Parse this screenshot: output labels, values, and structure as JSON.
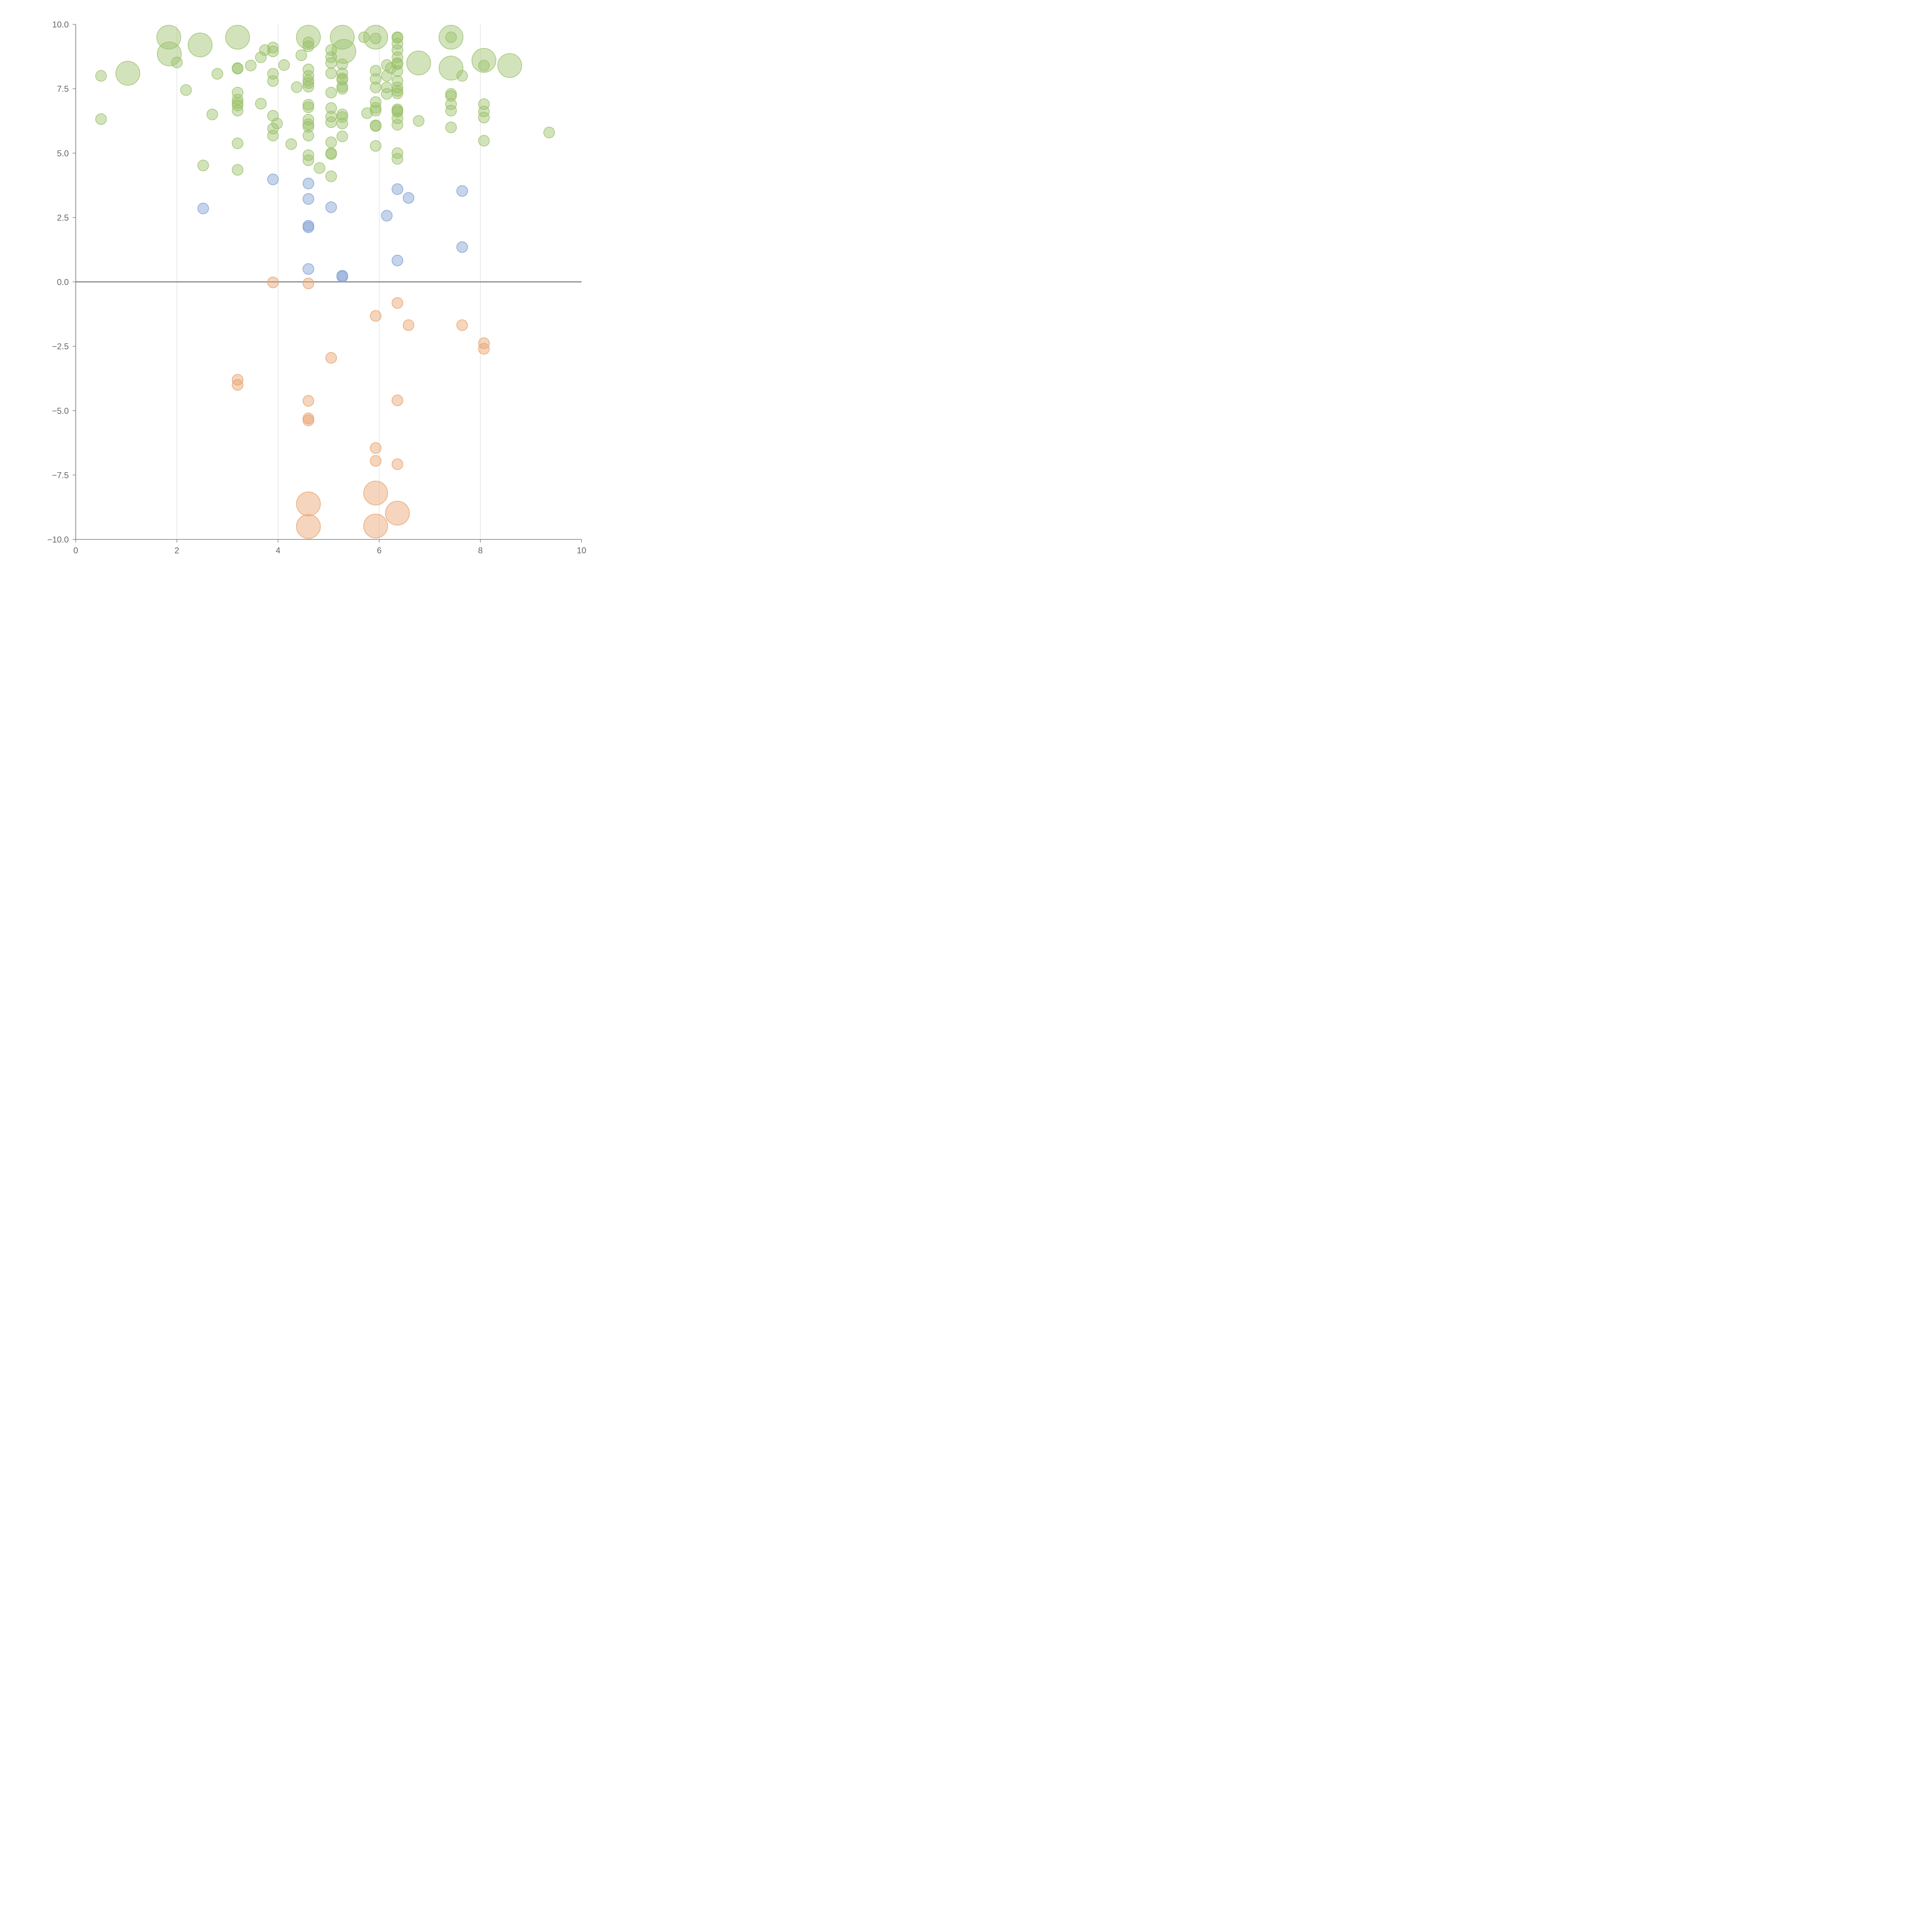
{
  "chart_data": {
    "type": "scatter",
    "title": "",
    "xlabel": "",
    "ylabel": "",
    "xlim": [
      0,
      10
    ],
    "ylim": [
      -10,
      10
    ],
    "x_ticks": [
      "0",
      "2",
      "4",
      "6",
      "8",
      "10"
    ],
    "y_ticks": [
      "10.0",
      "7.5",
      "5.0",
      "2.5",
      "0.0",
      "−2.5",
      "−5.0",
      "−7.5",
      "−10.0"
    ],
    "grid": {
      "vertical": true,
      "horizontal": false
    },
    "reference_line_y": 0,
    "size_encoding": "bubble size varies",
    "series": [
      {
        "color": "#9bc06a",
        "points": [
          {
            "x": 1.84,
            "y": 9.5,
            "s": 2
          },
          {
            "x": 1.85,
            "y": 8.85,
            "s": 2
          },
          {
            "x": 1.03,
            "y": 8.1,
            "s": 2
          },
          {
            "x": 2.46,
            "y": 9.2,
            "s": 2
          },
          {
            "x": 3.2,
            "y": 9.5,
            "s": 2
          },
          {
            "x": 4.6,
            "y": 9.5,
            "s": 2
          },
          {
            "x": 5.27,
            "y": 9.5,
            "s": 2
          },
          {
            "x": 5.3,
            "y": 8.95,
            "s": 2
          },
          {
            "x": 5.93,
            "y": 9.5,
            "s": 2
          },
          {
            "x": 6.78,
            "y": 8.5,
            "s": 2
          },
          {
            "x": 7.42,
            "y": 9.5,
            "s": 2
          },
          {
            "x": 7.42,
            "y": 8.3,
            "s": 2
          },
          {
            "x": 8.07,
            "y": 8.6,
            "s": 2
          },
          {
            "x": 8.58,
            "y": 8.4,
            "s": 2
          },
          {
            "x": 0.5,
            "y": 8.0,
            "s": 1
          },
          {
            "x": 0.5,
            "y": 6.32,
            "s": 1
          },
          {
            "x": 2.0,
            "y": 8.52,
            "s": 1
          },
          {
            "x": 2.18,
            "y": 7.45,
            "s": 1
          },
          {
            "x": 2.52,
            "y": 4.52,
            "s": 1
          },
          {
            "x": 2.7,
            "y": 6.5,
            "s": 1
          },
          {
            "x": 2.8,
            "y": 8.08,
            "s": 1
          },
          {
            "x": 3.2,
            "y": 8.3,
            "s": 1
          },
          {
            "x": 3.2,
            "y": 8.28,
            "s": 1
          },
          {
            "x": 3.2,
            "y": 7.35,
            "s": 1
          },
          {
            "x": 3.2,
            "y": 7.08,
            "s": 1
          },
          {
            "x": 3.2,
            "y": 6.95,
            "s": 1
          },
          {
            "x": 3.2,
            "y": 6.85,
            "s": 1
          },
          {
            "x": 3.2,
            "y": 6.65,
            "s": 1
          },
          {
            "x": 3.2,
            "y": 5.38,
            "s": 1
          },
          {
            "x": 3.2,
            "y": 4.35,
            "s": 1
          },
          {
            "x": 3.46,
            "y": 8.4,
            "s": 1
          },
          {
            "x": 3.66,
            "y": 8.72,
            "s": 1
          },
          {
            "x": 3.66,
            "y": 6.92,
            "s": 1
          },
          {
            "x": 3.74,
            "y": 9.0,
            "s": 1
          },
          {
            "x": 3.9,
            "y": 9.1,
            "s": 1
          },
          {
            "x": 3.9,
            "y": 8.95,
            "s": 1
          },
          {
            "x": 3.9,
            "y": 8.08,
            "s": 1
          },
          {
            "x": 3.9,
            "y": 7.8,
            "s": 1
          },
          {
            "x": 3.9,
            "y": 6.45,
            "s": 1
          },
          {
            "x": 3.9,
            "y": 5.95,
            "s": 1
          },
          {
            "x": 3.9,
            "y": 5.68,
            "s": 1
          },
          {
            "x": 3.98,
            "y": 6.15,
            "s": 1
          },
          {
            "x": 4.12,
            "y": 8.42,
            "s": 1
          },
          {
            "x": 4.26,
            "y": 5.35,
            "s": 1
          },
          {
            "x": 4.37,
            "y": 7.56,
            "s": 1
          },
          {
            "x": 4.46,
            "y": 8.8,
            "s": 1
          },
          {
            "x": 4.6,
            "y": 9.3,
            "s": 1
          },
          {
            "x": 4.6,
            "y": 9.15,
            "s": 1
          },
          {
            "x": 4.6,
            "y": 8.25,
            "s": 1
          },
          {
            "x": 4.6,
            "y": 8.0,
            "s": 1
          },
          {
            "x": 4.6,
            "y": 7.82,
            "s": 1
          },
          {
            "x": 4.6,
            "y": 7.72,
            "s": 1
          },
          {
            "x": 4.6,
            "y": 7.58,
            "s": 1
          },
          {
            "x": 4.6,
            "y": 6.88,
            "s": 1
          },
          {
            "x": 4.6,
            "y": 6.78,
            "s": 1
          },
          {
            "x": 4.6,
            "y": 6.3,
            "s": 1
          },
          {
            "x": 4.6,
            "y": 6.12,
            "s": 1
          },
          {
            "x": 4.6,
            "y": 6.02,
            "s": 1
          },
          {
            "x": 4.6,
            "y": 5.68,
            "s": 1
          },
          {
            "x": 4.6,
            "y": 4.92,
            "s": 1
          },
          {
            "x": 4.6,
            "y": 4.72,
            "s": 1
          },
          {
            "x": 4.82,
            "y": 4.42,
            "s": 1
          },
          {
            "x": 5.05,
            "y": 9.0,
            "s": 1
          },
          {
            "x": 5.05,
            "y": 8.72,
            "s": 1
          },
          {
            "x": 5.05,
            "y": 8.5,
            "s": 1
          },
          {
            "x": 5.05,
            "y": 8.1,
            "s": 1
          },
          {
            "x": 5.05,
            "y": 7.35,
            "s": 1
          },
          {
            "x": 5.05,
            "y": 6.75,
            "s": 1
          },
          {
            "x": 5.05,
            "y": 6.42,
            "s": 1
          },
          {
            "x": 5.05,
            "y": 6.2,
            "s": 1
          },
          {
            "x": 5.05,
            "y": 5.42,
            "s": 1
          },
          {
            "x": 5.05,
            "y": 5.0,
            "s": 1
          },
          {
            "x": 5.05,
            "y": 4.96,
            "s": 1
          },
          {
            "x": 5.05,
            "y": 4.1,
            "s": 1
          },
          {
            "x": 5.27,
            "y": 8.45,
            "s": 1
          },
          {
            "x": 5.27,
            "y": 8.1,
            "s": 1
          },
          {
            "x": 5.27,
            "y": 7.9,
            "s": 1
          },
          {
            "x": 5.27,
            "y": 7.85,
            "s": 1
          },
          {
            "x": 5.27,
            "y": 7.58,
            "s": 1
          },
          {
            "x": 5.27,
            "y": 7.5,
            "s": 1
          },
          {
            "x": 5.27,
            "y": 6.5,
            "s": 1
          },
          {
            "x": 5.27,
            "y": 6.4,
            "s": 1
          },
          {
            "x": 5.27,
            "y": 6.15,
            "s": 1
          },
          {
            "x": 5.27,
            "y": 5.65,
            "s": 1
          },
          {
            "x": 5.7,
            "y": 9.5,
            "s": 1
          },
          {
            "x": 5.76,
            "y": 6.55,
            "s": 1
          },
          {
            "x": 5.93,
            "y": 9.45,
            "s": 1
          },
          {
            "x": 5.93,
            "y": 8.2,
            "s": 1
          },
          {
            "x": 5.93,
            "y": 7.88,
            "s": 1
          },
          {
            "x": 5.93,
            "y": 7.55,
            "s": 1
          },
          {
            "x": 5.93,
            "y": 6.98,
            "s": 1
          },
          {
            "x": 5.93,
            "y": 6.76,
            "s": 1
          },
          {
            "x": 5.93,
            "y": 6.65,
            "s": 1
          },
          {
            "x": 5.93,
            "y": 6.08,
            "s": 1
          },
          {
            "x": 5.93,
            "y": 6.05,
            "s": 1
          },
          {
            "x": 5.93,
            "y": 5.28,
            "s": 1
          },
          {
            "x": 6.15,
            "y": 8.42,
            "s": 1
          },
          {
            "x": 6.15,
            "y": 8.0,
            "s": 1
          },
          {
            "x": 6.15,
            "y": 7.55,
            "s": 1
          },
          {
            "x": 6.15,
            "y": 7.3,
            "s": 1
          },
          {
            "x": 6.23,
            "y": 8.3,
            "s": 1
          },
          {
            "x": 6.36,
            "y": 9.5,
            "s": 1
          },
          {
            "x": 6.36,
            "y": 9.48,
            "s": 1
          },
          {
            "x": 6.36,
            "y": 9.25,
            "s": 1
          },
          {
            "x": 6.36,
            "y": 9.0,
            "s": 1
          },
          {
            "x": 6.36,
            "y": 8.72,
            "s": 1
          },
          {
            "x": 6.36,
            "y": 8.5,
            "s": 1
          },
          {
            "x": 6.36,
            "y": 8.45,
            "s": 1
          },
          {
            "x": 6.36,
            "y": 8.18,
            "s": 1
          },
          {
            "x": 6.36,
            "y": 7.8,
            "s": 1
          },
          {
            "x": 6.36,
            "y": 7.55,
            "s": 1
          },
          {
            "x": 6.36,
            "y": 7.42,
            "s": 1
          },
          {
            "x": 6.36,
            "y": 7.32,
            "s": 1
          },
          {
            "x": 6.36,
            "y": 6.7,
            "s": 1
          },
          {
            "x": 6.36,
            "y": 6.65,
            "s": 1
          },
          {
            "x": 6.36,
            "y": 6.6,
            "s": 1
          },
          {
            "x": 6.36,
            "y": 6.35,
            "s": 1
          },
          {
            "x": 6.36,
            "y": 6.1,
            "s": 1
          },
          {
            "x": 6.36,
            "y": 5.0,
            "s": 1
          },
          {
            "x": 6.36,
            "y": 4.78,
            "s": 1
          },
          {
            "x": 6.78,
            "y": 6.25,
            "s": 1
          },
          {
            "x": 7.42,
            "y": 9.5,
            "s": 1
          },
          {
            "x": 7.42,
            "y": 7.3,
            "s": 1
          },
          {
            "x": 7.42,
            "y": 7.22,
            "s": 1
          },
          {
            "x": 7.42,
            "y": 6.9,
            "s": 1
          },
          {
            "x": 7.42,
            "y": 6.65,
            "s": 1
          },
          {
            "x": 7.42,
            "y": 6.0,
            "s": 1
          },
          {
            "x": 7.64,
            "y": 8.0,
            "s": 1
          },
          {
            "x": 8.07,
            "y": 8.4,
            "s": 1
          },
          {
            "x": 8.07,
            "y": 6.9,
            "s": 1
          },
          {
            "x": 8.07,
            "y": 6.62,
            "s": 1
          },
          {
            "x": 8.07,
            "y": 6.38,
            "s": 1
          },
          {
            "x": 8.07,
            "y": 5.48,
            "s": 1
          },
          {
            "x": 9.36,
            "y": 5.8,
            "s": 1
          }
        ]
      },
      {
        "color": "#7fa0d2",
        "points": [
          {
            "x": 2.52,
            "y": 2.85,
            "s": 1
          },
          {
            "x": 3.9,
            "y": 3.98,
            "s": 1
          },
          {
            "x": 4.6,
            "y": 3.82,
            "s": 1
          },
          {
            "x": 4.6,
            "y": 3.22,
            "s": 1
          },
          {
            "x": 4.6,
            "y": 2.18,
            "s": 1
          },
          {
            "x": 4.6,
            "y": 2.12,
            "s": 1
          },
          {
            "x": 4.6,
            "y": 0.5,
            "s": 1
          },
          {
            "x": 5.05,
            "y": 2.9,
            "s": 1
          },
          {
            "x": 5.27,
            "y": 0.24,
            "s": 1
          },
          {
            "x": 5.27,
            "y": 0.2,
            "s": 1
          },
          {
            "x": 6.15,
            "y": 2.57,
            "s": 1
          },
          {
            "x": 6.36,
            "y": 3.6,
            "s": 1
          },
          {
            "x": 6.36,
            "y": 0.83,
            "s": 1
          },
          {
            "x": 6.58,
            "y": 3.26,
            "s": 1
          },
          {
            "x": 7.64,
            "y": 3.53,
            "s": 1
          },
          {
            "x": 7.64,
            "y": 1.35,
            "s": 1
          }
        ]
      },
      {
        "color": "#e8a26c",
        "points": [
          {
            "x": 3.9,
            "y": -0.02,
            "s": 1
          },
          {
            "x": 4.6,
            "y": -0.06,
            "s": 1
          },
          {
            "x": 6.36,
            "y": -0.82,
            "s": 1
          },
          {
            "x": 5.93,
            "y": -1.32,
            "s": 1
          },
          {
            "x": 6.58,
            "y": -1.68,
            "s": 1
          },
          {
            "x": 7.64,
            "y": -1.68,
            "s": 1
          },
          {
            "x": 8.07,
            "y": -2.38,
            "s": 1
          },
          {
            "x": 8.07,
            "y": -2.6,
            "s": 1
          },
          {
            "x": 5.05,
            "y": -2.95,
            "s": 1
          },
          {
            "x": 3.2,
            "y": -3.8,
            "s": 1
          },
          {
            "x": 3.2,
            "y": -4.0,
            "s": 1
          },
          {
            "x": 4.6,
            "y": -4.62,
            "s": 1
          },
          {
            "x": 6.36,
            "y": -4.6,
            "s": 1
          },
          {
            "x": 4.6,
            "y": -5.3,
            "s": 1
          },
          {
            "x": 4.6,
            "y": -5.38,
            "s": 1
          },
          {
            "x": 5.93,
            "y": -6.45,
            "s": 1
          },
          {
            "x": 5.93,
            "y": -6.95,
            "s": 1
          },
          {
            "x": 6.36,
            "y": -7.08,
            "s": 1
          },
          {
            "x": 5.93,
            "y": -8.2,
            "s": 2
          },
          {
            "x": 4.6,
            "y": -8.62,
            "s": 2
          },
          {
            "x": 6.36,
            "y": -8.98,
            "s": 2
          },
          {
            "x": 4.6,
            "y": -9.5,
            "s": 2
          },
          {
            "x": 5.93,
            "y": -9.48,
            "s": 2
          }
        ]
      }
    ]
  }
}
